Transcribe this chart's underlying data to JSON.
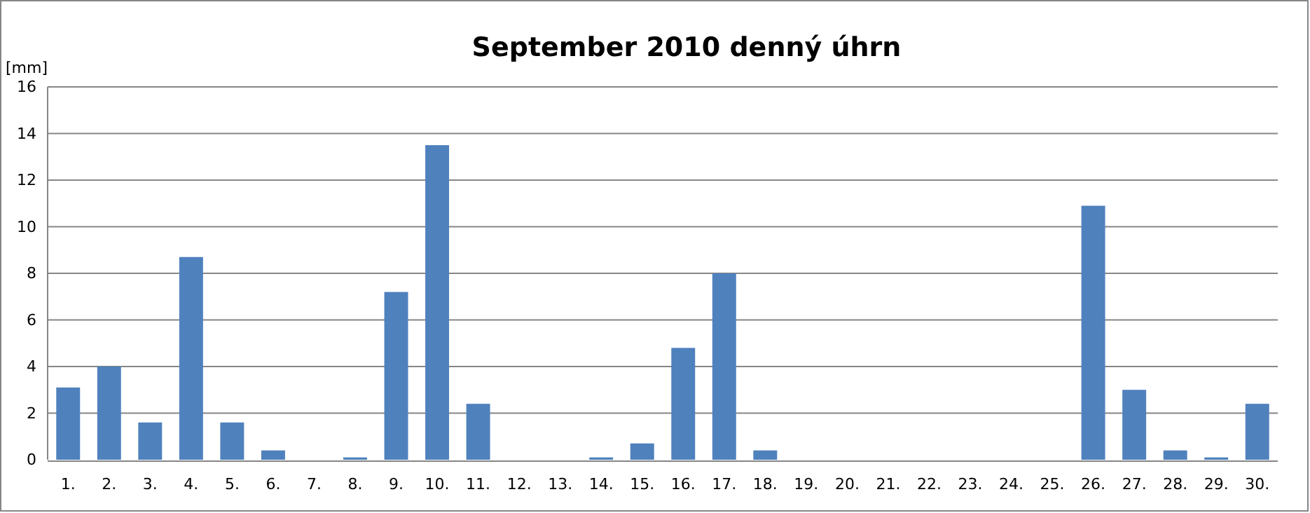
{
  "chart_data": {
    "type": "bar",
    "title": "September 2010 denný úhrn",
    "ylabel": "[mm]",
    "categories": [
      "1.",
      "2.",
      "3.",
      "4.",
      "5.",
      "6.",
      "7.",
      "8.",
      "9.",
      "10.",
      "11.",
      "12.",
      "13.",
      "14.",
      "15.",
      "16.",
      "17.",
      "18.",
      "19.",
      "20.",
      "21.",
      "22.",
      "23.",
      "24.",
      "25.",
      "26.",
      "27.",
      "28.",
      "29.",
      "30."
    ],
    "values": [
      3.1,
      4.0,
      1.6,
      8.7,
      1.6,
      0.4,
      0,
      0.1,
      7.2,
      13.5,
      2.4,
      0,
      0,
      0.1,
      0.7,
      4.8,
      8.0,
      0.4,
      0,
      0,
      0,
      0,
      0,
      0,
      0,
      10.9,
      3.0,
      0.4,
      0.1,
      2.4
    ],
    "color": "#4f81bd",
    "ylim": [
      0,
      16
    ],
    "yticks": [
      0,
      2,
      4,
      6,
      8,
      10,
      12,
      14,
      16
    ],
    "grid": "y"
  }
}
